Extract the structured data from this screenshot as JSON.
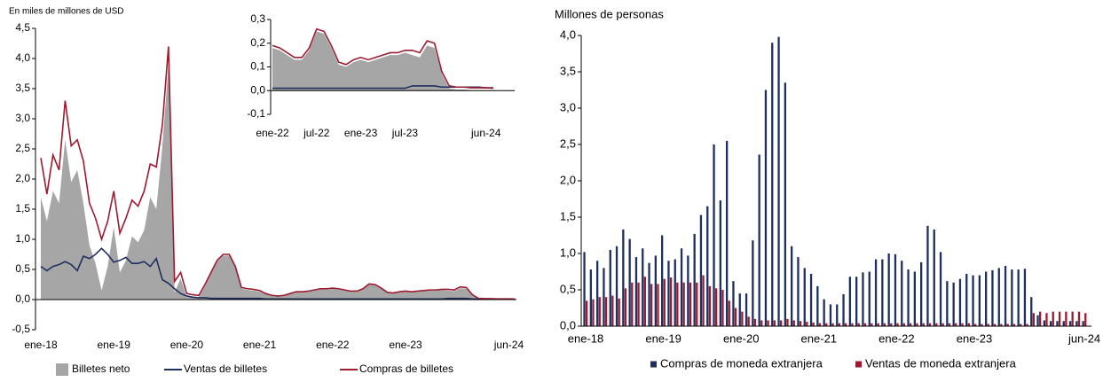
{
  "chart_data": [
    {
      "type": "line",
      "y_label": "En miles de millones de USD",
      "categories": [
        "ene-18",
        null,
        null,
        null,
        null,
        null,
        null,
        null,
        null,
        null,
        null,
        null,
        "ene-19",
        null,
        null,
        null,
        null,
        null,
        null,
        null,
        null,
        null,
        null,
        null,
        "ene-20",
        null,
        null,
        null,
        null,
        null,
        null,
        null,
        null,
        null,
        null,
        null,
        "ene-21",
        null,
        null,
        null,
        null,
        null,
        null,
        null,
        null,
        null,
        null,
        null,
        "ene-22",
        null,
        null,
        null,
        null,
        null,
        null,
        null,
        null,
        null,
        null,
        null,
        "ene-23",
        null,
        null,
        null,
        null,
        null,
        null,
        null,
        null,
        null,
        null,
        null,
        null,
        null,
        null,
        null,
        null,
        "jun-24",
        null
      ],
      "ylim": [
        -0.5,
        4.5
      ],
      "yticks": [
        {
          "value": -0.5,
          "label": "-0,5"
        },
        {
          "value": 0,
          "label": "0,0"
        },
        {
          "value": 0.5,
          "label": "0,5"
        },
        {
          "value": 1,
          "label": "1,0"
        },
        {
          "value": 1.5,
          "label": "1,5"
        },
        {
          "value": 2,
          "label": "2,0"
        },
        {
          "value": 2.5,
          "label": "2,5"
        },
        {
          "value": 3,
          "label": "3,0"
        },
        {
          "value": 3.5,
          "label": "3,5"
        },
        {
          "value": 4,
          "label": "4,0"
        },
        {
          "value": 4.5,
          "label": "4,5"
        }
      ],
      "series": [
        {
          "name": "Billetes neto",
          "kind": "area",
          "color": "#a6a6a6",
          "values": [
            1.7,
            1.3,
            1.8,
            1.6,
            2.65,
            1.95,
            2.15,
            1.6,
            0.9,
            0.6,
            0.15,
            0.55,
            1.2,
            0.45,
            0.65,
            1.05,
            0.95,
            1.15,
            1.7,
            1.5,
            2.55,
            3.9,
            0.12,
            0.35,
            0.04,
            0.04,
            0.04,
            0.22,
            0.43,
            0.63,
            0.73,
            0.73,
            0.53,
            0.18,
            0.16,
            0.15,
            0.13,
            0.09,
            0.06,
            0.05,
            0.06,
            0.09,
            0.12,
            0.12,
            0.13,
            0.15,
            0.17,
            0.17,
            0.18,
            0.17,
            0.15,
            0.13,
            0.13,
            0.17,
            0.25,
            0.24,
            0.18,
            0.11,
            0.1,
            0.12,
            0.13,
            0.12,
            0.13,
            0.14,
            0.15,
            0.15,
            0.16,
            0.15,
            0.14,
            0.19,
            0.18,
            0.07,
            0.01,
            0.005,
            0.005,
            0.002,
            0.002,
            0.002,
            0
          ]
        },
        {
          "name": "Ventas de billetes",
          "kind": "line",
          "color": "#1f2f5e",
          "values": [
            0.55,
            0.48,
            0.55,
            0.58,
            0.63,
            0.58,
            0.48,
            0.72,
            0.68,
            0.75,
            0.85,
            0.75,
            0.62,
            0.65,
            0.7,
            0.6,
            0.6,
            0.63,
            0.55,
            0.68,
            0.33,
            0.27,
            0.18,
            0.1,
            0.06,
            0.04,
            0.03,
            0.03,
            0.02,
            0.02,
            0.02,
            0.02,
            0.02,
            0.02,
            0.02,
            0.02,
            0.02,
            0.01,
            0.01,
            0.01,
            0.01,
            0.01,
            0.01,
            0.01,
            0.01,
            0.01,
            0.01,
            0.01,
            0.01,
            0.01,
            0.01,
            0.01,
            0.01,
            0.01,
            0.01,
            0.01,
            0.01,
            0.01,
            0.01,
            0.01,
            0.01,
            0.01,
            0.01,
            0.01,
            0.01,
            0.01,
            0.01,
            0.02,
            0.02,
            0.02,
            0.02,
            0.01,
            0.01,
            0.01,
            0.01,
            0.01,
            0.01,
            0.01,
            0.01
          ]
        },
        {
          "name": "Compras de billetes",
          "kind": "line",
          "color": "#9b1b30",
          "values": [
            2.35,
            1.75,
            2.4,
            2.15,
            3.3,
            2.55,
            2.65,
            2.3,
            1.6,
            1.35,
            1.0,
            1.3,
            1.8,
            1.1,
            1.35,
            1.65,
            1.55,
            1.8,
            2.25,
            2.2,
            2.9,
            4.2,
            0.3,
            0.45,
            0.1,
            0.08,
            0.07,
            0.25,
            0.45,
            0.65,
            0.75,
            0.75,
            0.55,
            0.2,
            0.18,
            0.17,
            0.15,
            0.1,
            0.07,
            0.06,
            0.07,
            0.1,
            0.13,
            0.13,
            0.14,
            0.16,
            0.18,
            0.18,
            0.19,
            0.18,
            0.16,
            0.14,
            0.14,
            0.18,
            0.26,
            0.25,
            0.19,
            0.12,
            0.11,
            0.13,
            0.14,
            0.13,
            0.14,
            0.15,
            0.16,
            0.16,
            0.17,
            0.17,
            0.16,
            0.21,
            0.2,
            0.08,
            0.02,
            0.015,
            0.015,
            0.012,
            0.012,
            0.012,
            0.01
          ]
        }
      ]
    },
    {
      "type": "line",
      "categories": [
        "ene-22",
        null,
        null,
        null,
        null,
        null,
        "jul-22",
        null,
        null,
        null,
        null,
        null,
        "ene-23",
        null,
        null,
        null,
        null,
        null,
        "jul-23",
        null,
        null,
        null,
        null,
        null,
        null,
        null,
        null,
        null,
        null,
        "jun-24",
        null
      ],
      "ylim": [
        -0.1,
        0.3
      ],
      "yticks": [
        {
          "value": -0.1,
          "label": "-0,1"
        },
        {
          "value": 0,
          "label": "0,0"
        },
        {
          "value": 0.1,
          "label": "0,1"
        },
        {
          "value": 0.2,
          "label": "0,2"
        },
        {
          "value": 0.3,
          "label": "0,3"
        }
      ],
      "series": [
        {
          "kind": "area",
          "color": "#a6a6a6",
          "values": [
            0.18,
            0.17,
            0.15,
            0.13,
            0.13,
            0.17,
            0.25,
            0.24,
            0.18,
            0.11,
            0.1,
            0.12,
            0.13,
            0.12,
            0.13,
            0.14,
            0.15,
            0.15,
            0.16,
            0.15,
            0.14,
            0.19,
            0.18,
            0.07,
            0.01,
            0.005,
            0.005,
            0.002,
            0.002,
            0.002,
            0
          ]
        },
        {
          "kind": "line",
          "color": "#1f2f5e",
          "values": [
            0.01,
            0.01,
            0.01,
            0.01,
            0.01,
            0.01,
            0.01,
            0.01,
            0.01,
            0.01,
            0.01,
            0.01,
            0.01,
            0.01,
            0.01,
            0.01,
            0.01,
            0.01,
            0.01,
            0.02,
            0.02,
            0.02,
            0.02,
            0.015,
            0.015,
            0.015,
            0.015,
            0.015,
            0.015,
            0.012,
            0.012
          ]
        },
        {
          "kind": "line",
          "color": "#9b1b30",
          "values": [
            0.19,
            0.18,
            0.16,
            0.14,
            0.14,
            0.18,
            0.26,
            0.25,
            0.19,
            0.12,
            0.11,
            0.13,
            0.14,
            0.13,
            0.14,
            0.15,
            0.16,
            0.16,
            0.17,
            0.17,
            0.16,
            0.21,
            0.2,
            0.08,
            0.02,
            0.015,
            0.015,
            0.012,
            0.012,
            0.012,
            0.01
          ]
        }
      ]
    },
    {
      "type": "bar",
      "y_label": "Millones de personas",
      "categories": [
        "ene-18",
        null,
        null,
        null,
        null,
        null,
        null,
        null,
        null,
        null,
        null,
        null,
        "ene-19",
        null,
        null,
        null,
        null,
        null,
        null,
        null,
        null,
        null,
        null,
        null,
        "ene-20",
        null,
        null,
        null,
        null,
        null,
        null,
        null,
        null,
        null,
        null,
        null,
        "ene-21",
        null,
        null,
        null,
        null,
        null,
        null,
        null,
        null,
        null,
        null,
        null,
        "ene-22",
        null,
        null,
        null,
        null,
        null,
        null,
        null,
        null,
        null,
        null,
        null,
        "ene-23",
        null,
        null,
        null,
        null,
        null,
        null,
        null,
        null,
        null,
        null,
        null,
        null,
        null,
        null,
        null,
        null,
        "jun-24"
      ],
      "ylim": [
        0,
        4
      ],
      "yticks": [
        {
          "value": 0,
          "label": "0,0"
        },
        {
          "value": 0.5,
          "label": "0,5"
        },
        {
          "value": 1,
          "label": "1,0"
        },
        {
          "value": 1.5,
          "label": "1,5"
        },
        {
          "value": 2,
          "label": "2,0"
        },
        {
          "value": 2.5,
          "label": "2,5"
        },
        {
          "value": 3,
          "label": "3,0"
        },
        {
          "value": 3.5,
          "label": "3,5"
        },
        {
          "value": 4,
          "label": "4,0"
        }
      ],
      "series": [
        {
          "name": "Compras de moneda extranjera",
          "color": "#1f2f5e",
          "values": [
            1.02,
            0.78,
            0.9,
            0.8,
            1.05,
            1.1,
            1.33,
            1.2,
            0.95,
            1.07,
            0.87,
            0.97,
            1.25,
            0.9,
            0.92,
            1.07,
            0.97,
            1.27,
            1.53,
            1.65,
            2.5,
            1.73,
            2.55,
            0.62,
            0.45,
            0.45,
            1.18,
            2.36,
            3.25,
            3.9,
            3.98,
            3.35,
            1.1,
            0.95,
            0.8,
            0.72,
            0.55,
            0.37,
            0.3,
            0.3,
            0.44,
            0.68,
            0.68,
            0.74,
            0.75,
            0.92,
            0.92,
            1.0,
            0.99,
            0.9,
            0.78,
            0.75,
            0.88,
            1.38,
            1.33,
            1.02,
            0.62,
            0.6,
            0.65,
            0.72,
            0.7,
            0.7,
            0.75,
            0.77,
            0.8,
            0.83,
            0.78,
            0.78,
            0.79,
            0.4,
            0.15,
            0.08,
            0.07,
            0.07,
            0.07,
            0.07,
            0.07,
            0.07
          ]
        },
        {
          "name": "Ventas de moneda extranjera",
          "color": "#9b1b30",
          "values": [
            0.35,
            0.37,
            0.4,
            0.4,
            0.42,
            0.38,
            0.52,
            0.6,
            0.6,
            0.68,
            0.58,
            0.58,
            0.65,
            0.67,
            0.6,
            0.6,
            0.6,
            0.6,
            0.7,
            0.55,
            0.52,
            0.5,
            0.35,
            0.25,
            0.2,
            0.13,
            0.1,
            0.08,
            0.08,
            0.08,
            0.08,
            0.1,
            0.08,
            0.07,
            0.06,
            0.05,
            0.04,
            0.04,
            0.04,
            0.04,
            0.04,
            0.04,
            0.04,
            0.04,
            0.04,
            0.04,
            0.04,
            0.04,
            0.04,
            0.04,
            0.04,
            0.04,
            0.04,
            0.04,
            0.04,
            0.04,
            0.04,
            0.04,
            0.04,
            0.04,
            0.03,
            0.03,
            0.03,
            0.03,
            0.03,
            0.03,
            0.03,
            0.03,
            0.03,
            0.18,
            0.2,
            0.18,
            0.2,
            0.2,
            0.2,
            0.2,
            0.2,
            0.18
          ]
        }
      ]
    }
  ]
}
